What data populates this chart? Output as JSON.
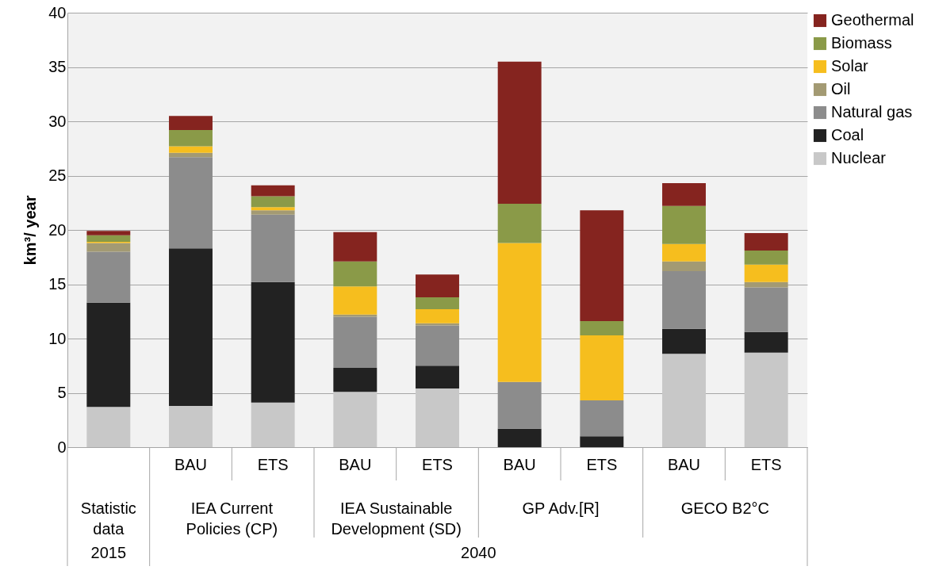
{
  "chart_data": {
    "type": "bar",
    "stacked": true,
    "ylabel": "km³/ year",
    "categories": [
      null,
      "BAU",
      "ETS",
      "BAU",
      "ETS",
      "BAU",
      "ETS",
      "BAU",
      "ETS"
    ],
    "series": [
      {
        "name": "Nuclear",
        "color": "#c8c8c8",
        "values": [
          3.7,
          3.8,
          4.1,
          5.1,
          5.4,
          null,
          null,
          8.6,
          8.7
        ]
      },
      {
        "name": "Coal",
        "color": "#222222",
        "values": [
          9.6,
          14.5,
          11.1,
          2.2,
          2.1,
          1.7,
          1.0,
          2.3,
          1.9
        ]
      },
      {
        "name": "Natural gas",
        "color": "#8c8c8c",
        "values": [
          4.7,
          8.4,
          6.2,
          4.7,
          3.7,
          4.3,
          3.3,
          5.3,
          4.1
        ]
      },
      {
        "name": "Oil",
        "color": "#a39a73",
        "values": [
          0.8,
          0.4,
          0.4,
          0.2,
          0.2,
          0,
          0,
          0.9,
          0.5
        ]
      },
      {
        "name": "Solar",
        "color": "#f6be1e",
        "values": [
          0.1,
          0.6,
          0.3,
          2.6,
          1.3,
          12.8,
          6.0,
          1.6,
          1.6
        ]
      },
      {
        "name": "Biomass",
        "color": "#8a9a48",
        "values": [
          0.6,
          1.5,
          1.0,
          2.3,
          1.1,
          3.6,
          1.3,
          3.5,
          1.3
        ]
      },
      {
        "name": "Geothermal",
        "color": "#85241f",
        "values": [
          0.4,
          1.3,
          1.0,
          2.7,
          2.1,
          13.1,
          10.2,
          2.1,
          1.6
        ]
      }
    ],
    "ylim": [
      0,
      40
    ],
    "yticks": [
      0,
      5,
      10,
      15,
      20,
      25,
      30,
      35,
      40
    ],
    "grid": "y",
    "legend": "top right",
    "annotations": [
      "Statistic data",
      "IEA Current Policies (CP)",
      "IEA Sustainable Development (SD)",
      "GP Adv.[R]",
      "GECO B2°C",
      "2015",
      "2040"
    ]
  }
}
